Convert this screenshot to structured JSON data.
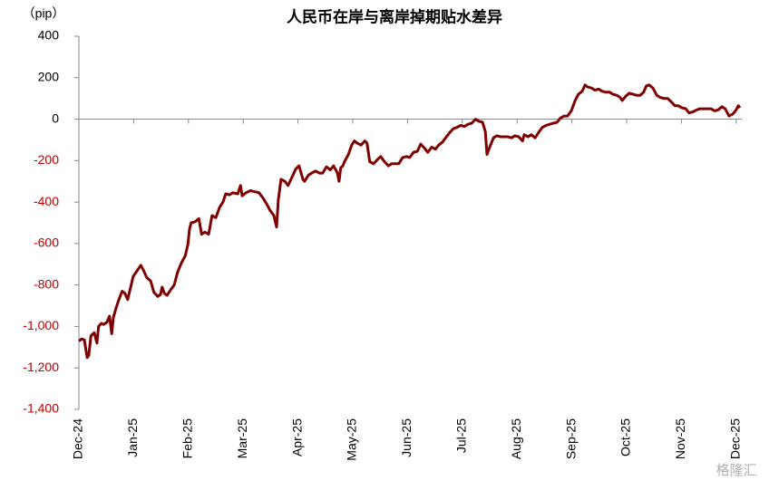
{
  "chart_data": {
    "type": "line",
    "title": "人民币在岸与离岸掉期贴水差异",
    "y_unit_label": "（pip）",
    "watermark": "格隆汇",
    "negative_tick_color": "#c00000",
    "xlim": [
      0,
      12.1
    ],
    "xticks": [
      {
        "value": 0,
        "label": "Dec-24"
      },
      {
        "value": 1,
        "label": "Jan-25"
      },
      {
        "value": 2,
        "label": "Feb-25"
      },
      {
        "value": 3,
        "label": "Mar-25"
      },
      {
        "value": 4,
        "label": "Apr-25"
      },
      {
        "value": 5,
        "label": "May-25"
      },
      {
        "value": 6,
        "label": "Jun-25"
      },
      {
        "value": 7,
        "label": "Jul-25"
      },
      {
        "value": 8,
        "label": "Aug-25"
      },
      {
        "value": 9,
        "label": "Sep-25"
      },
      {
        "value": 10,
        "label": "Oct-25"
      },
      {
        "value": 11,
        "label": "Nov-25"
      },
      {
        "value": 12,
        "label": "Dec-25"
      }
    ],
    "ylim": [
      -1400,
      400
    ],
    "yticks": [
      400,
      200,
      0,
      -200,
      -400,
      -600,
      -800,
      {
        "value": -1000,
        "label": "-1,000"
      },
      {
        "value": -1200,
        "label": "-1,200"
      },
      {
        "value": -1400,
        "label": "-1,400"
      }
    ],
    "series": [
      {
        "color": "#7f0000",
        "x": [
          0,
          0.05,
          0.1,
          0.15,
          0.18,
          0.22,
          0.28,
          0.33,
          0.36,
          0.41,
          0.45,
          0.51,
          0.56,
          0.6,
          0.63,
          0.68,
          0.73,
          0.79,
          0.84,
          0.89,
          0.94,
          0.99,
          1.04,
          1.13,
          1.18,
          1.24,
          1.31,
          1.37,
          1.44,
          1.49,
          1.52,
          1.56,
          1.61,
          1.67,
          1.74,
          1.8,
          1.87,
          1.94,
          1.99,
          2.02,
          2.05,
          2.12,
          2.19,
          2.24,
          2.3,
          2.37,
          2.43,
          2.5,
          2.57,
          2.63,
          2.68,
          2.75,
          2.81,
          2.9,
          2.95,
          2.98,
          3.05,
          3.13,
          3.21,
          3.29,
          3.36,
          3.43,
          3.49,
          3.56,
          3.61,
          3.64,
          3.69,
          3.76,
          3.82,
          3.89,
          3.96,
          4.02,
          4.09,
          4.12,
          4.19,
          4.25,
          4.32,
          4.39,
          4.45,
          4.52,
          4.59,
          4.65,
          4.72,
          4.75,
          4.78,
          4.82,
          4.85,
          4.92,
          4.98,
          5.03,
          5.08,
          5.15,
          5.22,
          5.26,
          5.31,
          5.38,
          5.45,
          5.51,
          5.58,
          5.65,
          5.71,
          5.78,
          5.84,
          5.91,
          5.98,
          6.04,
          6.11,
          6.18,
          6.24,
          6.31,
          6.37,
          6.44,
          6.51,
          6.57,
          6.64,
          6.71,
          6.77,
          6.84,
          6.9,
          6.97,
          7.04,
          7.1,
          7.17,
          7.24,
          7.3,
          7.37,
          7.42,
          7.45,
          7.5,
          7.57,
          7.63,
          7.7,
          7.76,
          7.83,
          7.9,
          7.96,
          8.03,
          8.1,
          8.13,
          8.2,
          8.26,
          8.33,
          8.39,
          8.46,
          8.53,
          8.59,
          8.66,
          8.73,
          8.79,
          8.86,
          8.92,
          8.99,
          9.06,
          9.12,
          9.19,
          9.24,
          9.29,
          9.36,
          9.42,
          9.49,
          9.55,
          9.62,
          9.69,
          9.75,
          9.82,
          9.88,
          9.92,
          9.98,
          10.05,
          10.12,
          10.18,
          10.25,
          10.31,
          10.36,
          10.41,
          10.48,
          10.55,
          10.61,
          10.68,
          10.75,
          10.81,
          10.88,
          10.94,
          11.01,
          11.08,
          11.14,
          11.21,
          11.28,
          11.34,
          11.41,
          11.47,
          11.54,
          11.61,
          11.67,
          11.74,
          11.8,
          11.87,
          11.94,
          12.0,
          12.04,
          12.07
        ],
        "values": [
          -1070,
          -1060,
          -1065,
          -1150,
          -1140,
          -1045,
          -1030,
          -1080,
          -1000,
          -985,
          -990,
          -980,
          -950,
          -1035,
          -955,
          -910,
          -870,
          -830,
          -840,
          -870,
          -815,
          -760,
          -740,
          -705,
          -730,
          -765,
          -780,
          -835,
          -855,
          -845,
          -810,
          -840,
          -850,
          -825,
          -800,
          -740,
          -695,
          -660,
          -605,
          -530,
          -500,
          -495,
          -480,
          -555,
          -545,
          -555,
          -465,
          -475,
          -425,
          -400,
          -360,
          -365,
          -355,
          -360,
          -320,
          -370,
          -355,
          -345,
          -350,
          -355,
          -380,
          -410,
          -440,
          -465,
          -520,
          -390,
          -290,
          -300,
          -320,
          -280,
          -240,
          -225,
          -290,
          -300,
          -270,
          -260,
          -250,
          -260,
          -260,
          -230,
          -245,
          -225,
          -260,
          -300,
          -235,
          -225,
          -205,
          -170,
          -125,
          -105,
          -115,
          -125,
          -105,
          -115,
          -205,
          -215,
          -195,
          -180,
          -205,
          -225,
          -215,
          -215,
          -215,
          -185,
          -180,
          -185,
          -160,
          -155,
          -120,
          -140,
          -160,
          -135,
          -145,
          -125,
          -110,
          -85,
          -65,
          -45,
          -40,
          -30,
          -35,
          -25,
          -20,
          0,
          -10,
          -15,
          -60,
          -170,
          -135,
          -90,
          -80,
          -85,
          -85,
          -85,
          -90,
          -80,
          -85,
          -105,
          -75,
          -85,
          -75,
          -90,
          -65,
          -40,
          -30,
          -25,
          -20,
          -15,
          5,
          15,
          15,
          40,
          90,
          120,
          135,
          165,
          155,
          150,
          140,
          145,
          135,
          130,
          130,
          120,
          115,
          105,
          90,
          110,
          125,
          120,
          115,
          115,
          130,
          160,
          165,
          150,
          115,
          105,
          100,
          100,
          85,
          65,
          65,
          55,
          50,
          30,
          35,
          45,
          50,
          50,
          50,
          50,
          40,
          45,
          60,
          50,
          15,
          25,
          45,
          65,
          55
        ]
      }
    ]
  }
}
